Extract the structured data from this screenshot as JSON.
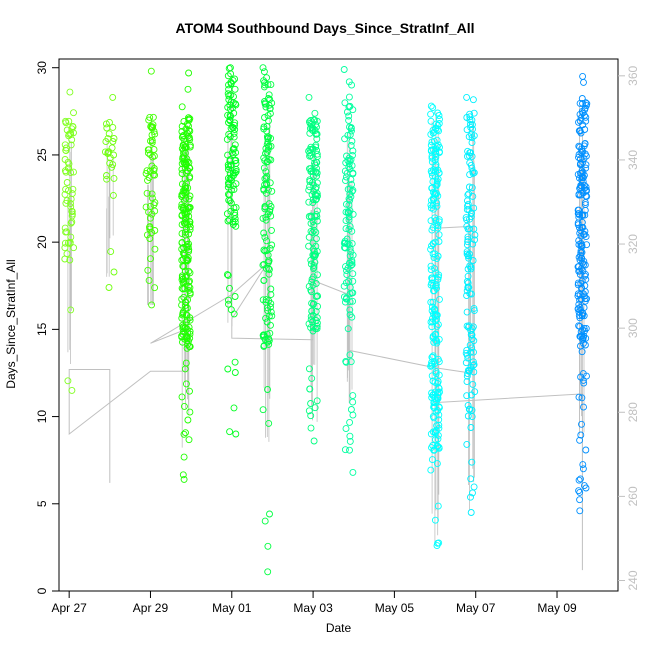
{
  "chart_data": {
    "type": "scatter",
    "title": "ATOM4 Southbound Days_Since_StratInf_All",
    "xlabel": "Date",
    "ylabel": "Days_Since_StratInf_All",
    "xlim": [
      "2016-04-26T18:00",
      "2016-05-10T12:00"
    ],
    "ylim": [
      0,
      30.5
    ],
    "x_tick_labels": [
      "Apr 27",
      "Apr 29",
      "May 01",
      "May 03",
      "May 05",
      "May 07",
      "May 09"
    ],
    "x_tick_values": [
      "2016-04-27",
      "2016-04-29",
      "2016-05-01",
      "2016-05-03",
      "2016-05-05",
      "2016-05-07",
      "2016-05-09"
    ],
    "y_ticks": [
      0,
      5,
      10,
      15,
      20,
      25,
      30
    ],
    "y2_ticks": [
      240,
      260,
      280,
      300,
      320,
      340,
      360
    ],
    "y2lim": [
      237.5,
      364
    ],
    "grid": false,
    "legend": "none",
    "colors": {
      "flight_track": "#c0c0c0",
      "right_axis": "#c0c0c0",
      "clusters": [
        "#7fff00",
        "#7fff00",
        "#3fff00",
        "#2dff10",
        "#00ff40",
        "#00ff80",
        "#00ffa0",
        "#00ffff",
        "#00f0ff",
        "#0090ff"
      ]
    },
    "clusters": [
      {
        "x": "2016-04-27T00:00",
        "y_range": [
          11.5,
          28.6
        ],
        "y_dense": [
          19.0,
          27.0
        ],
        "n": 60,
        "color": "#80ff20"
      },
      {
        "x": "2016-04-28T00:00",
        "y_range": [
          17.4,
          28.3
        ],
        "y_dense": [
          23.5,
          27.0
        ],
        "n": 25,
        "color": "#70ff10"
      },
      {
        "x": "2016-04-29T00:00",
        "y_range": [
          16.4,
          29.8
        ],
        "y_dense": [
          19.0,
          27.5
        ],
        "n": 55,
        "color": "#40ff00"
      },
      {
        "x": "2016-04-29T21:00",
        "y_range": [
          6.4,
          29.7
        ],
        "y_dense": [
          14.0,
          27.5
        ],
        "n": 220,
        "color": "#20ff00"
      },
      {
        "x": "2016-05-01T00:00",
        "y_range": [
          9.0,
          30.0
        ],
        "y_dense": [
          21.0,
          30.0
        ],
        "n": 110,
        "color": "#00ff20"
      },
      {
        "x": "2016-05-01T21:00",
        "y_range": [
          1.1,
          30.0
        ],
        "y_dense": [
          14.0,
          30.0
        ],
        "n": 130,
        "color": "#00ff40"
      },
      {
        "x": "2016-05-03T00:00",
        "y_range": [
          8.6,
          28.3
        ],
        "y_dense": [
          15.0,
          27.0
        ],
        "n": 150,
        "color": "#00ff80"
      },
      {
        "x": "2016-05-03T21:00",
        "y_range": [
          6.8,
          29.9
        ],
        "y_dense": [
          15.5,
          27.5
        ],
        "n": 120,
        "color": "#00ffa0"
      },
      {
        "x": "2016-05-06T00:00",
        "y_range": [
          2.6,
          27.8
        ],
        "y_dense": [
          8.0,
          27.5
        ],
        "n": 220,
        "color": "#00ffff"
      },
      {
        "x": "2016-05-06T21:00",
        "y_range": [
          4.5,
          28.3
        ],
        "y_dense": [
          9.5,
          27.5
        ],
        "n": 130,
        "color": "#00f0ff"
      },
      {
        "x": "2016-05-09T15:00",
        "y_range": [
          4.6,
          29.5
        ],
        "y_dense": [
          14.0,
          28.0
        ],
        "n": 200,
        "color": "#0090ff"
      }
    ],
    "track_vertices": [
      [
        "2016-04-27T00:00",
        12.7
      ],
      [
        "2016-04-28T00:00",
        12.7
      ],
      [
        "2016-04-28T00:00",
        6.2
      ],
      [
        "2016-04-28T00:00",
        12.7
      ],
      [
        "2016-04-27T00:00",
        12.7
      ],
      [
        "2016-04-27T00:00",
        9.0
      ],
      [
        "2016-04-29T00:00",
        12.6
      ],
      [
        "2016-04-29T21:00",
        12.6
      ],
      [
        "2016-04-29T21:00",
        15.0
      ],
      [
        "2016-04-29T00:00",
        14.2
      ],
      [
        "2016-05-01T00:00",
        17.0
      ],
      [
        "2016-05-01T21:00",
        18.8
      ],
      [
        "2016-05-01T00:00",
        15.6
      ],
      [
        "2016-05-01T00:00",
        14.5
      ],
      [
        "2016-05-03T00:00",
        14.4
      ],
      [
        "2016-05-03T00:00",
        17.8
      ],
      [
        "2016-05-03T21:00",
        17.0
      ],
      [
        "2016-05-03T21:00",
        13.8
      ],
      [
        "2016-05-06T00:00",
        12.8
      ],
      [
        "2016-05-06T21:00",
        12.5
      ],
      [
        "2016-05-06T21:00",
        20.9
      ],
      [
        "2016-05-06T00:00",
        20.8
      ],
      [
        "2016-05-06T00:00",
        10.8
      ],
      [
        "2016-05-09T15:00",
        11.3
      ],
      [
        "2016-05-09T15:00",
        1.2
      ]
    ]
  }
}
